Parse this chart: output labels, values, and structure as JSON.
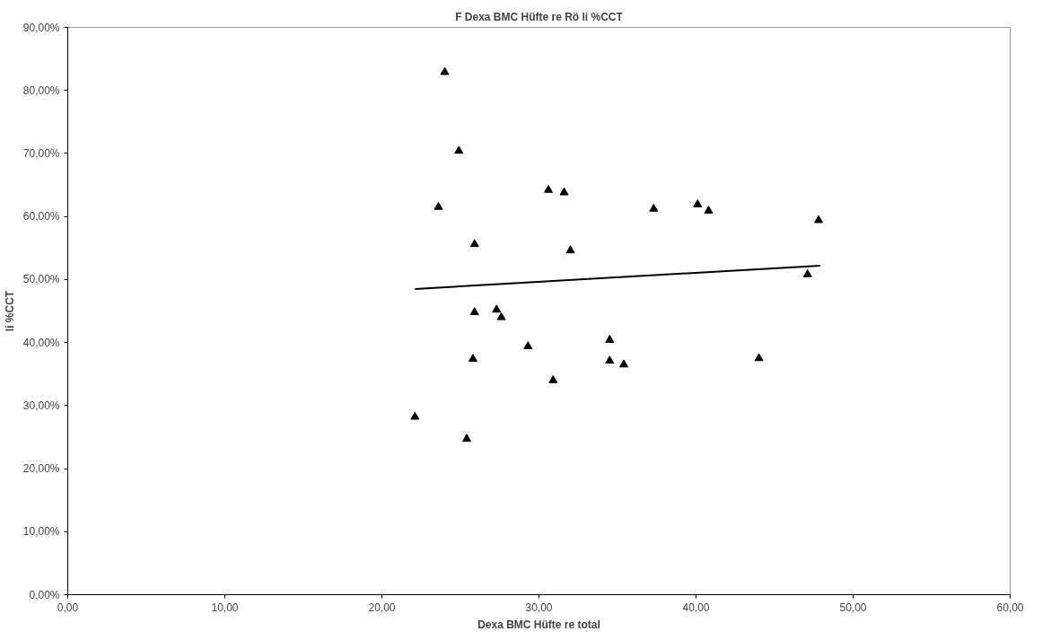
{
  "chart_data": {
    "type": "scatter",
    "title": "F Dexa BMC Hüfte re Rö li %CCT",
    "xlabel": "Dexa BMC Hüfte re total",
    "ylabel": "li %CCT",
    "xlim": [
      0,
      60
    ],
    "ylim": [
      0,
      90
    ],
    "xticks": [
      {
        "value": 0,
        "label": "0,00"
      },
      {
        "value": 10,
        "label": "10,00"
      },
      {
        "value": 20,
        "label": "20,00"
      },
      {
        "value": 30,
        "label": "30,00"
      },
      {
        "value": 40,
        "label": "40,00"
      },
      {
        "value": 50,
        "label": "50,00"
      },
      {
        "value": 60,
        "label": "60,00"
      }
    ],
    "yticks": [
      {
        "value": 0,
        "label": "0,00%"
      },
      {
        "value": 10,
        "label": "10,00%"
      },
      {
        "value": 20,
        "label": "20,00%"
      },
      {
        "value": 30,
        "label": "30,00%"
      },
      {
        "value": 40,
        "label": "40,00%"
      },
      {
        "value": 50,
        "label": "50,00%"
      },
      {
        "value": 60,
        "label": "60,00%"
      },
      {
        "value": 70,
        "label": "70,00%"
      },
      {
        "value": 80,
        "label": "80,00%"
      },
      {
        "value": 90,
        "label": "90,00%"
      }
    ],
    "grid": false,
    "marker": "triangle",
    "series": [
      {
        "color": "#000000",
        "x": [
          24.0,
          24.9,
          23.6,
          30.6,
          31.6,
          37.3,
          40.1,
          40.8,
          25.9,
          32.0,
          25.9,
          27.3,
          27.6,
          29.3,
          34.5,
          34.5,
          35.4,
          25.8,
          30.9,
          22.1,
          25.4,
          47.8,
          47.1,
          44.0
        ],
        "values": [
          82.9,
          70.4,
          61.5,
          64.2,
          63.8,
          61.2,
          61.9,
          60.9,
          55.6,
          54.6,
          44.8,
          45.2,
          44.0,
          39.4,
          40.4,
          37.1,
          36.5,
          37.4,
          34.0,
          28.2,
          24.7,
          59.4,
          50.8,
          37.5
        ]
      },
      {
        "type": "line",
        "color": "#000000",
        "marker": "none",
        "line_style": "solid",
        "x": [
          22.1,
          47.9
        ],
        "values": [
          48.5,
          52.2
        ]
      }
    ]
  }
}
